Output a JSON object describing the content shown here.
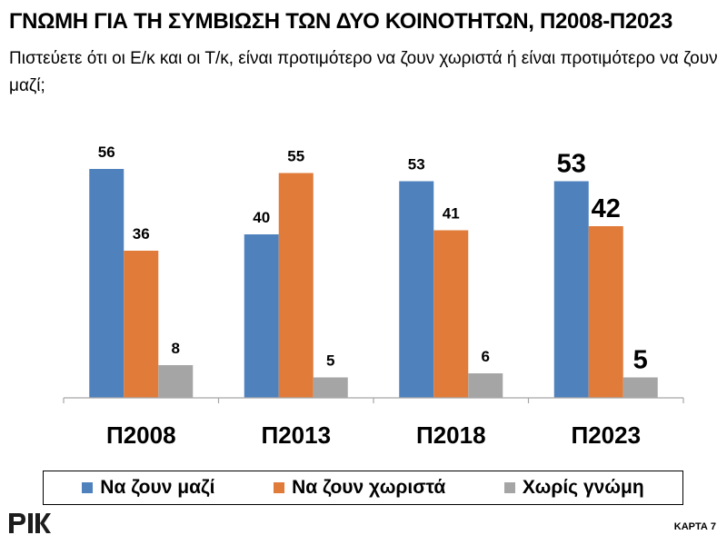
{
  "header": {
    "title": "ΓΝΩΜΗ ΓΙΑ ΤΗ ΣΥΜΒΙΩΣΗ ΤΩΝ ΔΥΟ ΚΟΙΝΟΤΗΤΩΝ, Π2008-Π2023",
    "subtitle": "Πιστεύετε ότι οι Ε/κ και οι Τ/κ, είναι προτιμότερο να ζουν χωριστά ή είναι προτιμότερο να ζουν μαζί;"
  },
  "chart_data": {
    "type": "bar",
    "categories": [
      "Π2008",
      "Π2013",
      "Π2018",
      "Π2023"
    ],
    "series": [
      {
        "name": "Να ζουν μαζί",
        "values": [
          56,
          40,
          53,
          53
        ],
        "color": "#4f81bd"
      },
      {
        "name": "Να ζουν χωριστά",
        "values": [
          36,
          55,
          41,
          42
        ],
        "color": "#e07b39"
      },
      {
        "name": "Χωρίς γνώμη",
        "values": [
          8,
          5,
          6,
          5
        ],
        "color": "#a5a5a5"
      }
    ],
    "ylim": [
      0,
      64
    ],
    "grid": false,
    "legend_position": "bottom",
    "data_labels": true
  },
  "footer": {
    "logo_text": "ΡΙΚ",
    "map_label": "ΚΑΡΤΑ 7"
  }
}
